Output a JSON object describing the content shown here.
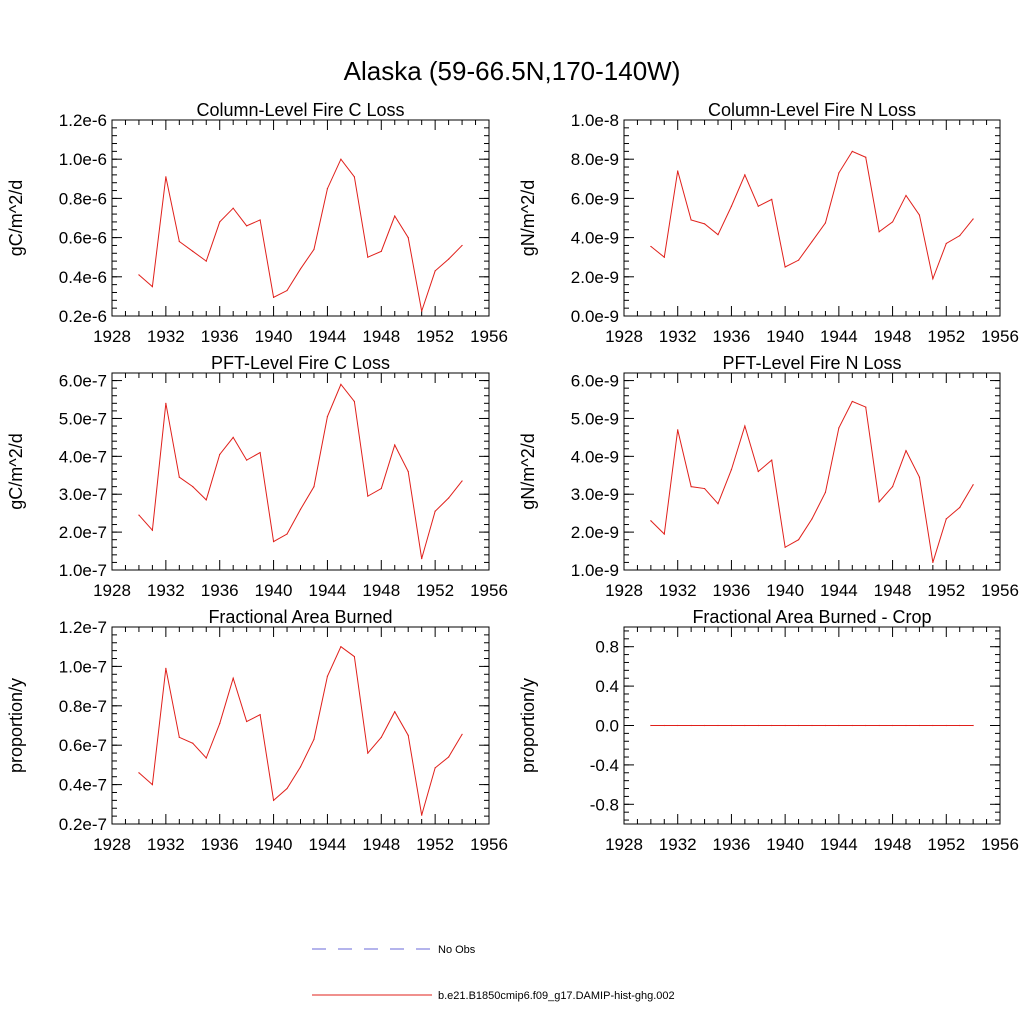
{
  "figure": {
    "title": "Alaska (59-66.5N,170-140W)"
  },
  "legend": {
    "entries": [
      {
        "label": "No Obs",
        "color": "#6a6ad8",
        "dashed": true
      },
      {
        "label": "b.e21.B1850cmip6.f09_g17.DAMIP-hist-ghg.002",
        "color": "#e0201b",
        "dashed": false
      }
    ]
  },
  "chart_data": [
    {
      "type": "line",
      "title": "Column-Level Fire C Loss",
      "ylabel": "gC/m^2/d",
      "xlim": [
        1928,
        1956
      ],
      "ylim": [
        2e-07,
        1.2e-06
      ],
      "x_ticks": [
        1928,
        1932,
        1936,
        1940,
        1944,
        1948,
        1952,
        1956
      ],
      "y_ticks": [
        2e-07,
        4e-07,
        6e-07,
        8e-07,
        1e-06,
        1.2e-06
      ],
      "y_tick_labels": [
        "0.2e-6",
        "0.4e-6",
        "0.6e-6",
        "0.8e-6",
        "1.0e-6",
        "1.2e-6"
      ],
      "x": [
        1930,
        1931,
        1932,
        1933,
        1934,
        1935,
        1936,
        1937,
        1938,
        1939,
        1940,
        1941,
        1942,
        1943,
        1944,
        1945,
        1946,
        1947,
        1948,
        1949,
        1950,
        1951,
        1952,
        1953,
        1954
      ],
      "series": [
        {
          "color": "#e0201b",
          "values": [
            4.1e-07,
            3.5e-07,
            9.1e-07,
            5.8e-07,
            5.3e-07,
            4.8e-07,
            6.8e-07,
            7.5e-07,
            6.6e-07,
            6.9e-07,
            2.95e-07,
            3.3e-07,
            4.4e-07,
            5.4e-07,
            8.5e-07,
            1e-06,
            9.1e-07,
            5e-07,
            5.3e-07,
            7.1e-07,
            6e-07,
            2.25e-07,
            4.3e-07,
            4.9e-07,
            5.6e-07
          ]
        }
      ]
    },
    {
      "type": "line",
      "title": "Column-Level Fire N Loss",
      "ylabel": "gN/m^2/d",
      "xlim": [
        1928,
        1956
      ],
      "ylim": [
        0,
        1e-08
      ],
      "x_ticks": [
        1928,
        1932,
        1936,
        1940,
        1944,
        1948,
        1952,
        1956
      ],
      "y_ticks": [
        0,
        2e-09,
        4e-09,
        6e-09,
        8e-09,
        1e-08
      ],
      "y_tick_labels": [
        "0.0e-9",
        "2.0e-9",
        "4.0e-9",
        "6.0e-9",
        "8.0e-9",
        "1.0e-8"
      ],
      "x": [
        1930,
        1931,
        1932,
        1933,
        1934,
        1935,
        1936,
        1937,
        1938,
        1939,
        1940,
        1941,
        1942,
        1943,
        1944,
        1945,
        1946,
        1947,
        1948,
        1949,
        1950,
        1951,
        1952,
        1953,
        1954
      ],
      "series": [
        {
          "color": "#e0201b",
          "values": [
            3.55e-09,
            3e-09,
            7.4e-09,
            4.9e-09,
            4.7e-09,
            4.15e-09,
            5.6e-09,
            7.2e-09,
            5.6e-09,
            5.95e-09,
            2.5e-09,
            2.85e-09,
            3.8e-09,
            4.75e-09,
            7.3e-09,
            8.4e-09,
            8.1e-09,
            4.3e-09,
            4.8e-09,
            6.15e-09,
            5.15e-09,
            1.9e-09,
            3.7e-09,
            4.1e-09,
            4.95e-09
          ]
        }
      ]
    },
    {
      "type": "line",
      "title": "PFT-Level Fire C Loss",
      "ylabel": "gC/m^2/d",
      "xlim": [
        1928,
        1956
      ],
      "ylim": [
        1e-07,
        6.2e-07
      ],
      "x_ticks": [
        1928,
        1932,
        1936,
        1940,
        1944,
        1948,
        1952,
        1956
      ],
      "y_ticks": [
        1e-07,
        2e-07,
        3e-07,
        4e-07,
        5e-07,
        6e-07
      ],
      "y_tick_labels": [
        "1.0e-7",
        "2.0e-7",
        "3.0e-7",
        "4.0e-7",
        "5.0e-7",
        "6.0e-7"
      ],
      "x": [
        1930,
        1931,
        1932,
        1933,
        1934,
        1935,
        1936,
        1937,
        1938,
        1939,
        1940,
        1941,
        1942,
        1943,
        1944,
        1945,
        1946,
        1947,
        1948,
        1949,
        1950,
        1951,
        1952,
        1953,
        1954
      ],
      "series": [
        {
          "color": "#e0201b",
          "values": [
            2.45e-07,
            2.05e-07,
            5.4e-07,
            3.45e-07,
            3.2e-07,
            2.85e-07,
            4.05e-07,
            4.5e-07,
            3.9e-07,
            4.1e-07,
            1.75e-07,
            1.95e-07,
            2.6e-07,
            3.2e-07,
            5.05e-07,
            5.9e-07,
            5.45e-07,
            2.95e-07,
            3.15e-07,
            4.3e-07,
            3.6e-07,
            1.3e-07,
            2.55e-07,
            2.9e-07,
            3.35e-07
          ]
        }
      ]
    },
    {
      "type": "line",
      "title": "PFT-Level Fire N Loss",
      "ylabel": "gN/m^2/d",
      "xlim": [
        1928,
        1956
      ],
      "ylim": [
        1e-09,
        6.2e-09
      ],
      "x_ticks": [
        1928,
        1932,
        1936,
        1940,
        1944,
        1948,
        1952,
        1956
      ],
      "y_ticks": [
        1e-09,
        2e-09,
        3e-09,
        4e-09,
        5e-09,
        6e-09
      ],
      "y_tick_labels": [
        "1.0e-9",
        "2.0e-9",
        "3.0e-9",
        "4.0e-9",
        "5.0e-9",
        "6.0e-9"
      ],
      "x": [
        1930,
        1931,
        1932,
        1933,
        1934,
        1935,
        1936,
        1937,
        1938,
        1939,
        1940,
        1941,
        1942,
        1943,
        1944,
        1945,
        1946,
        1947,
        1948,
        1949,
        1950,
        1951,
        1952,
        1953,
        1954
      ],
      "series": [
        {
          "color": "#e0201b",
          "values": [
            2.3e-09,
            1.95e-09,
            4.7e-09,
            3.2e-09,
            3.15e-09,
            2.75e-09,
            3.65e-09,
            4.8e-09,
            3.6e-09,
            3.9e-09,
            1.6e-09,
            1.8e-09,
            2.35e-09,
            3.05e-09,
            4.75e-09,
            5.45e-09,
            5.3e-09,
            2.8e-09,
            3.2e-09,
            4.15e-09,
            3.45e-09,
            1.2e-09,
            2.35e-09,
            2.65e-09,
            3.25e-09
          ]
        }
      ]
    },
    {
      "type": "line",
      "title": "Fractional Area Burned",
      "ylabel": "proportion/y",
      "xlim": [
        1928,
        1956
      ],
      "ylim": [
        2e-08,
        1.2e-07
      ],
      "x_ticks": [
        1928,
        1932,
        1936,
        1940,
        1944,
        1948,
        1952,
        1956
      ],
      "y_ticks": [
        2e-08,
        4e-08,
        6e-08,
        8e-08,
        1e-07,
        1.2e-07
      ],
      "y_tick_labels": [
        "0.2e-7",
        "0.4e-7",
        "0.6e-7",
        "0.8e-7",
        "1.0e-7",
        "1.2e-7"
      ],
      "x": [
        1930,
        1931,
        1932,
        1933,
        1934,
        1935,
        1936,
        1937,
        1938,
        1939,
        1940,
        1941,
        1942,
        1943,
        1944,
        1945,
        1946,
        1947,
        1948,
        1949,
        1950,
        1951,
        1952,
        1953,
        1954
      ],
      "series": [
        {
          "color": "#e0201b",
          "values": [
            4.6e-08,
            4e-08,
            9.9e-08,
            6.4e-08,
            6.1e-08,
            5.35e-08,
            7.1e-08,
            9.4e-08,
            7.2e-08,
            7.55e-08,
            3.2e-08,
            3.8e-08,
            4.9e-08,
            6.3e-08,
            9.5e-08,
            1.1e-07,
            1.05e-07,
            5.6e-08,
            6.4e-08,
            7.7e-08,
            6.5e-08,
            2.45e-08,
            4.85e-08,
            5.4e-08,
            6.55e-08
          ]
        }
      ]
    },
    {
      "type": "line",
      "title": "Fractional Area Burned - Crop",
      "ylabel": "proportion/y",
      "xlim": [
        1928,
        1956
      ],
      "ylim": [
        -1.0,
        1.0
      ],
      "x_ticks": [
        1928,
        1932,
        1936,
        1940,
        1944,
        1948,
        1952,
        1956
      ],
      "y_ticks": [
        -0.8,
        -0.4,
        0.0,
        0.4,
        0.8
      ],
      "y_tick_labels": [
        "-0.8",
        "-0.4",
        "0.0",
        "0.4",
        "0.8"
      ],
      "x": [
        1930,
        1931,
        1932,
        1933,
        1934,
        1935,
        1936,
        1937,
        1938,
        1939,
        1940,
        1941,
        1942,
        1943,
        1944,
        1945,
        1946,
        1947,
        1948,
        1949,
        1950,
        1951,
        1952,
        1953,
        1954
      ],
      "series": [
        {
          "color": "#e0201b",
          "values": [
            0,
            0,
            0,
            0,
            0,
            0,
            0,
            0,
            0,
            0,
            0,
            0,
            0,
            0,
            0,
            0,
            0,
            0,
            0,
            0,
            0,
            0,
            0,
            0,
            0
          ]
        }
      ]
    }
  ]
}
